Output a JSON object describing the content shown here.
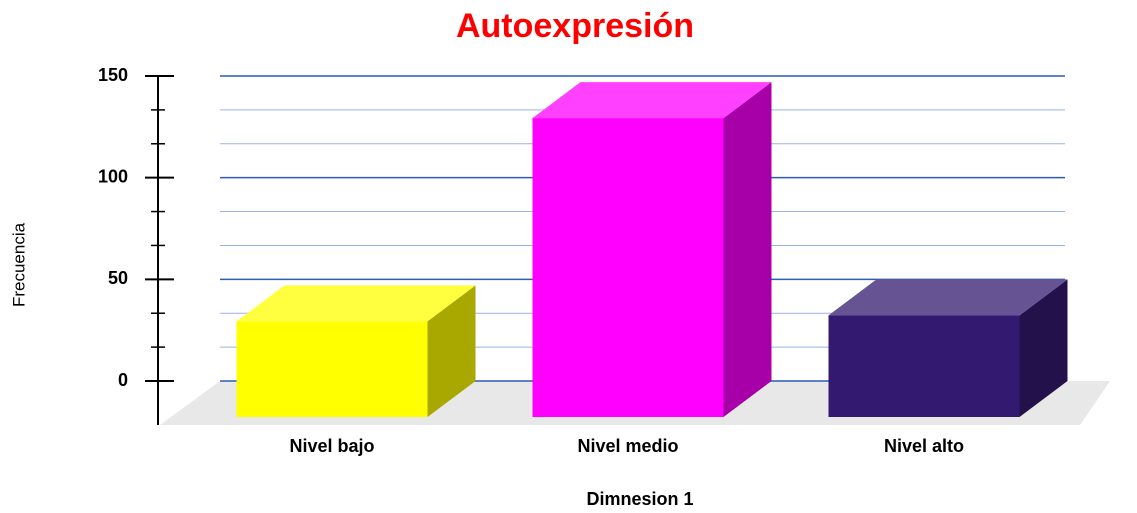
{
  "chart_data": {
    "type": "bar3d",
    "title": "Autoexpresión",
    "x_label": "Dimnesion 1",
    "y_label": "Frecuencia",
    "categories": [
      "Nivel bajo",
      "Nivel medio",
      "Nivel alto"
    ],
    "values": [
      47,
      147,
      50
    ],
    "colors": [
      "#ffff00",
      "#ff00ff",
      "#331a70"
    ],
    "ylim": [
      0,
      150
    ],
    "yticks": [
      0,
      50,
      100,
      150
    ],
    "minor_yticks": [
      16.67,
      33.33,
      66.67,
      83.33,
      116.67,
      133.33
    ],
    "grid": true
  }
}
